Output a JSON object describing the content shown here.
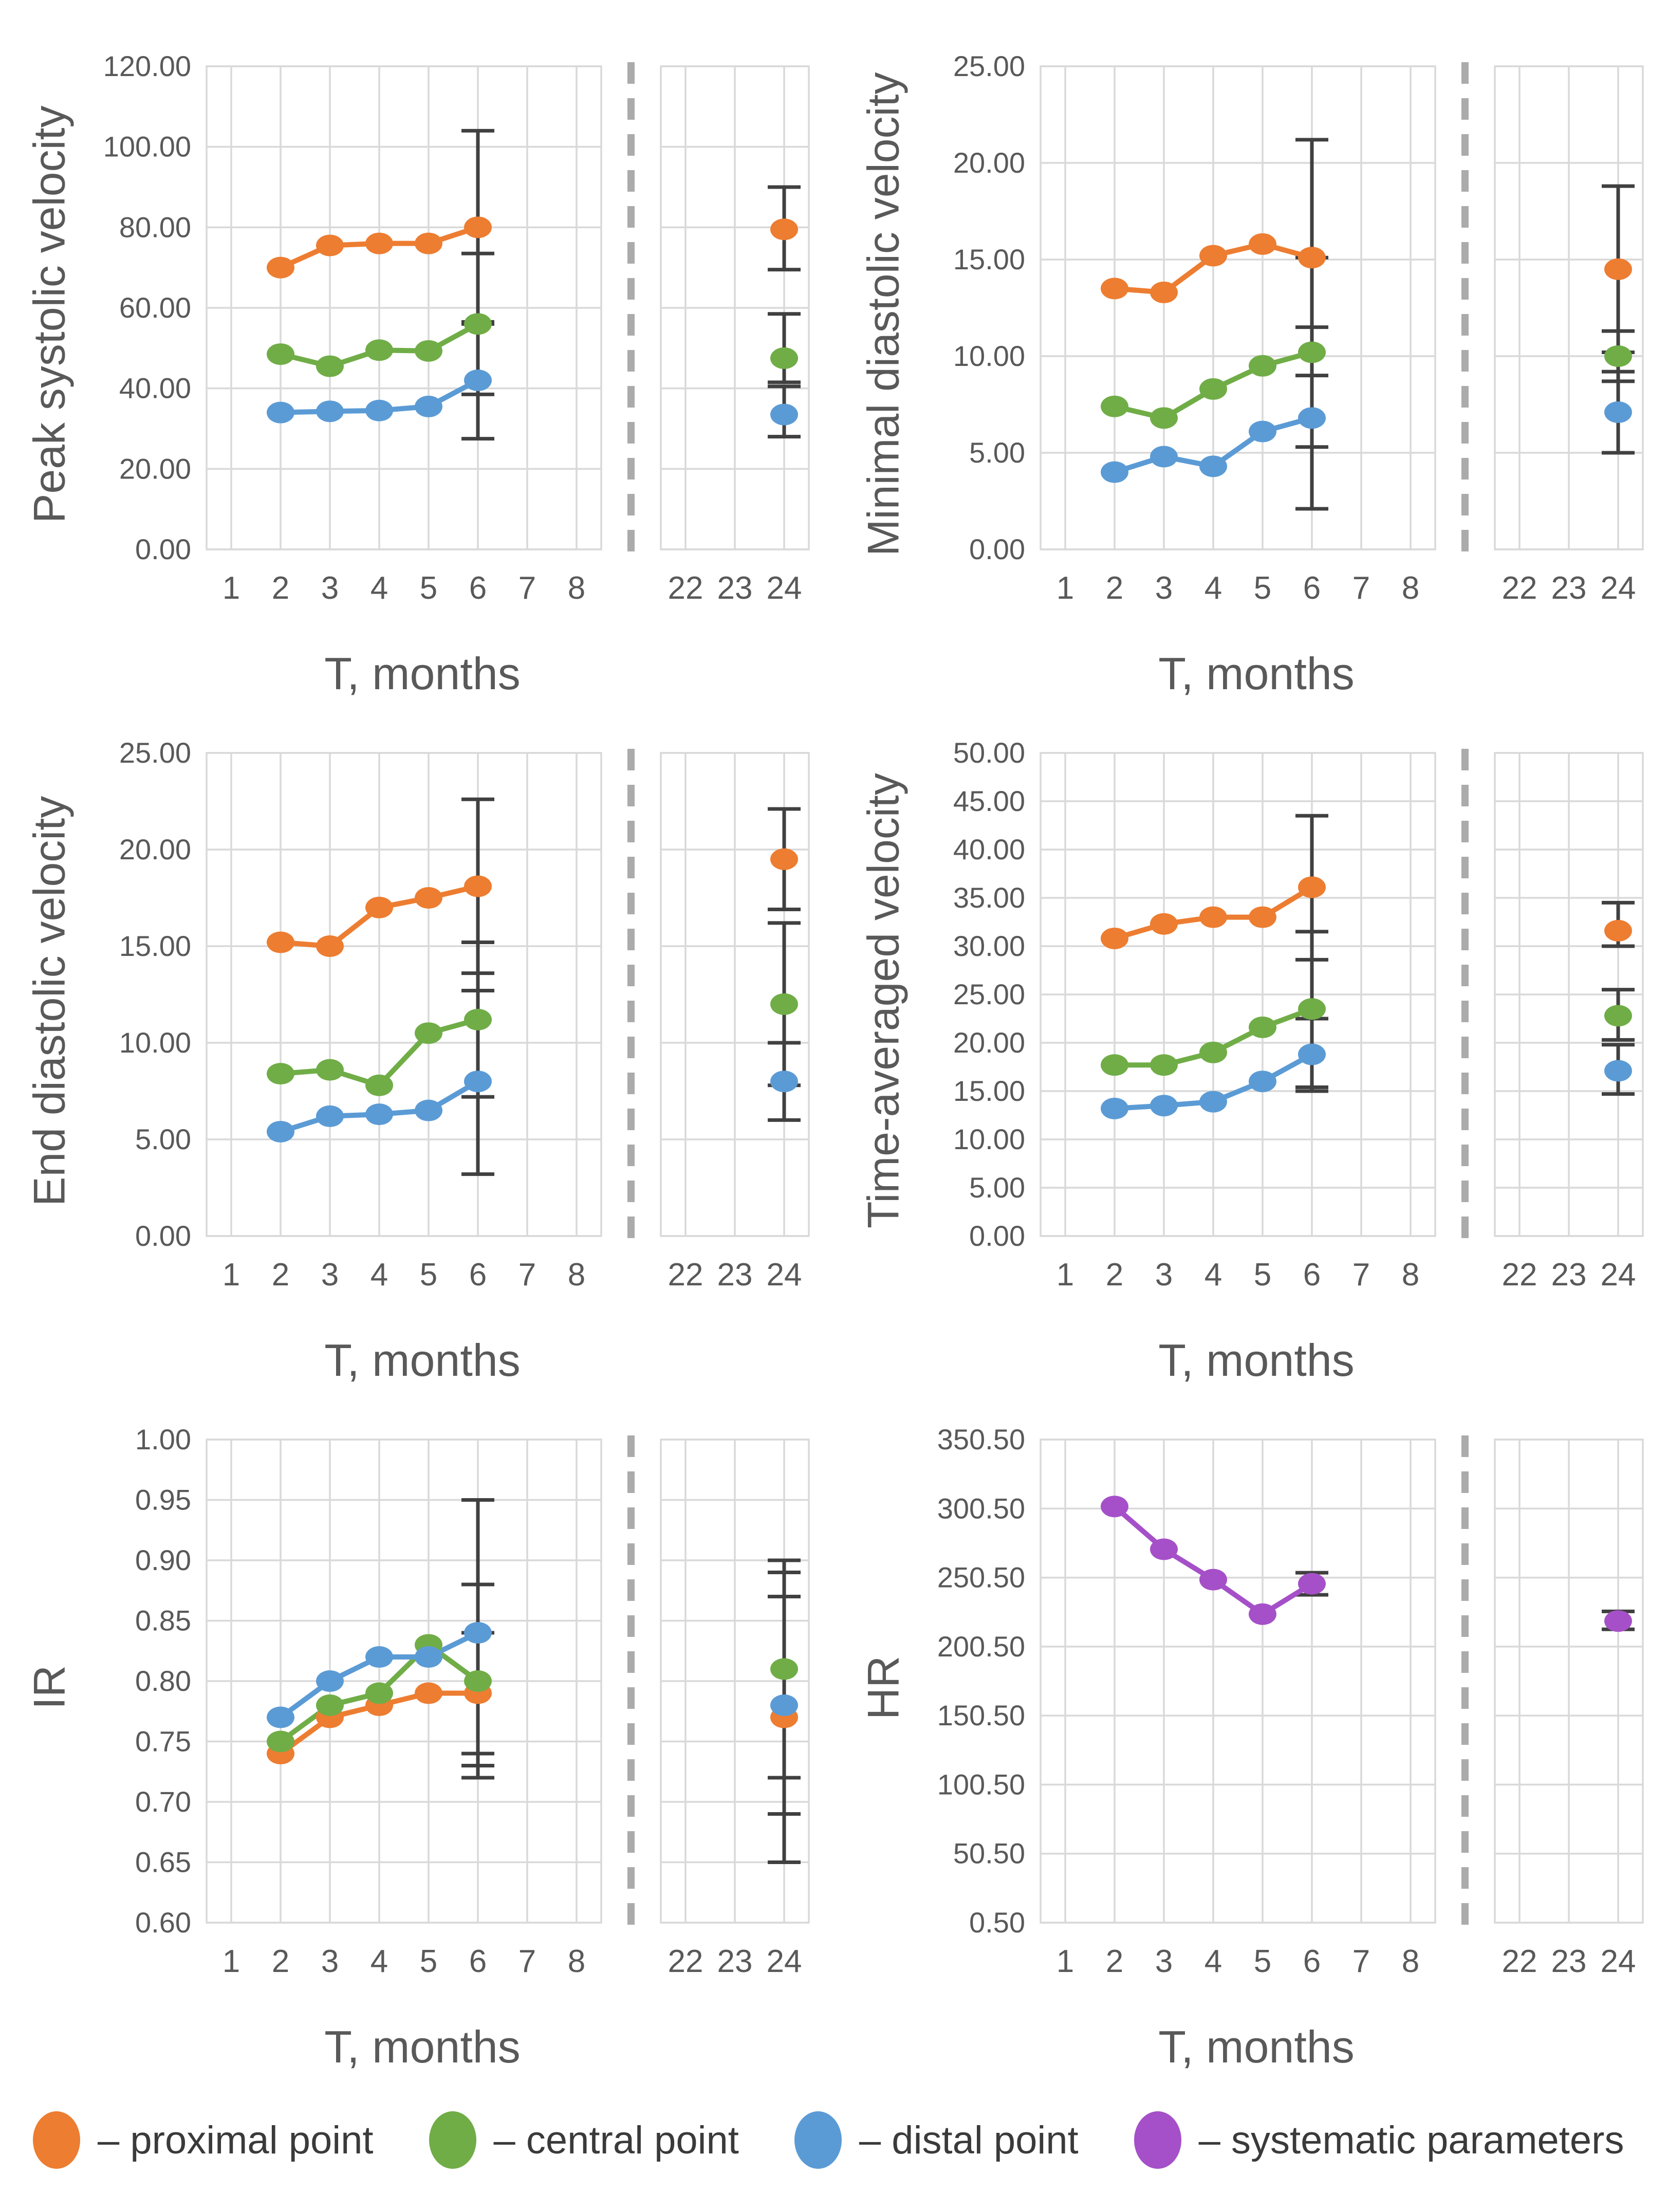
{
  "colors": {
    "proximal": "#ED7D31",
    "central": "#70AD47",
    "distal": "#5B9BD5",
    "systematic": "#A550C8",
    "error_bar": "#404040",
    "grid": "#D9D9D9",
    "axis_text": "#595959",
    "break_line": "#ABABAB"
  },
  "x_axis": {
    "main_ticks": [
      "1",
      "2",
      "3",
      "4",
      "5",
      "6",
      "7",
      "8"
    ],
    "break_ticks": [
      "22",
      "23",
      "24"
    ],
    "axis_break": true
  },
  "legend": [
    {
      "key": "proximal",
      "label": "– proximal point"
    },
    {
      "key": "central",
      "label": "– central point"
    },
    {
      "key": "distal",
      "label": "– distal point"
    },
    {
      "key": "systematic",
      "label": "– systematic parameters"
    }
  ],
  "chart_data": [
    {
      "type": "line",
      "ylabel": "Peak systolic velocity",
      "xlabel": "T, months",
      "ylim": [
        0,
        120
      ],
      "ytick_vals": [
        0,
        20,
        40,
        60,
        80,
        100,
        120
      ],
      "ytick_labels": [
        "0.00",
        "20.00",
        "40.00",
        "60.00",
        "80.00",
        "100.00",
        "120.00"
      ],
      "series": [
        {
          "name": "proximal point",
          "colorKey": "proximal",
          "x": [
            2,
            3,
            4,
            5,
            6
          ],
          "y": [
            70,
            75.5,
            76,
            76,
            80
          ],
          "err": {
            "6": [
              56,
              104
            ]
          },
          "p24": {
            "y": 79.5,
            "err": [
              69.5,
              90
            ]
          }
        },
        {
          "name": "central point",
          "colorKey": "central",
          "x": [
            2,
            3,
            4,
            5,
            6
          ],
          "y": [
            48.5,
            45.5,
            49.5,
            49.3,
            56
          ],
          "err": {
            "6": [
              38.5,
              73.5
            ]
          },
          "p24": {
            "y": 47.5,
            "err": [
              41.5,
              58.5
            ]
          }
        },
        {
          "name": "distal point",
          "colorKey": "distal",
          "x": [
            2,
            3,
            4,
            5,
            6
          ],
          "y": [
            34,
            34.3,
            34.5,
            35.5,
            42
          ],
          "err": {
            "6": [
              27.5,
              56.5
            ]
          },
          "p24": {
            "y": 33.5,
            "err": [
              28,
              40.5
            ]
          }
        }
      ]
    },
    {
      "type": "line",
      "ylabel": "Minimal diastolic velocity",
      "xlabel": "T, months",
      "ylim": [
        0,
        25
      ],
      "ytick_vals": [
        0,
        5,
        10,
        15,
        20,
        25
      ],
      "ytick_labels": [
        "0.00",
        "5.00",
        "10.00",
        "15.00",
        "20.00",
        "25.00"
      ],
      "series": [
        {
          "name": "proximal point",
          "colorKey": "proximal",
          "x": [
            2,
            3,
            4,
            5,
            6
          ],
          "y": [
            13.5,
            13.3,
            15.2,
            15.8,
            15.1
          ],
          "err": {
            "6": [
              9.0,
              21.2
            ]
          },
          "p24": {
            "y": 14.5,
            "err": [
              10.2,
              18.8
            ]
          }
        },
        {
          "name": "central point",
          "colorKey": "central",
          "x": [
            2,
            3,
            4,
            5,
            6
          ],
          "y": [
            7.4,
            6.8,
            8.3,
            9.5,
            10.2
          ],
          "err": {
            "6": [
              5.3,
              15.1
            ]
          },
          "p24": {
            "y": 10.0,
            "err": [
              8.7,
              11.3
            ]
          }
        },
        {
          "name": "distal point",
          "colorKey": "distal",
          "x": [
            2,
            3,
            4,
            5,
            6
          ],
          "y": [
            4.0,
            4.8,
            4.3,
            6.1,
            6.8
          ],
          "err": {
            "6": [
              2.1,
              11.5
            ]
          },
          "p24": {
            "y": 7.1,
            "err": [
              5.0,
              9.2
            ]
          }
        }
      ]
    },
    {
      "type": "line",
      "ylabel": "End diastolic velocity",
      "xlabel": "T, months",
      "ylim": [
        0,
        25
      ],
      "ytick_vals": [
        0,
        5,
        10,
        15,
        20,
        25
      ],
      "ytick_labels": [
        "0.00",
        "5.00",
        "10.00",
        "15.00",
        "20.00",
        "25.00"
      ],
      "series": [
        {
          "name": "proximal point",
          "colorKey": "proximal",
          "x": [
            2,
            3,
            4,
            5,
            6
          ],
          "y": [
            15.2,
            15.0,
            17.0,
            17.5,
            18.1
          ],
          "err": {
            "6": [
              13.6,
              22.6
            ]
          },
          "p24": {
            "y": 19.5,
            "err": [
              16.9,
              22.1
            ]
          }
        },
        {
          "name": "central point",
          "colorKey": "central",
          "x": [
            2,
            3,
            4,
            5,
            6
          ],
          "y": [
            8.4,
            8.6,
            7.8,
            10.5,
            11.2
          ],
          "err": {
            "6": [
              7.2,
              15.2
            ]
          },
          "p24": {
            "y": 12.0,
            "err": [
              7.8,
              16.2
            ]
          }
        },
        {
          "name": "distal point",
          "colorKey": "distal",
          "x": [
            2,
            3,
            4,
            5,
            6
          ],
          "y": [
            5.4,
            6.2,
            6.3,
            6.5,
            8.0
          ],
          "err": {
            "6": [
              3.2,
              12.7
            ]
          },
          "p24": {
            "y": 8.0,
            "err": [
              6.0,
              10.0
            ]
          }
        }
      ]
    },
    {
      "type": "line",
      "ylabel": "Time-averaged velocity",
      "xlabel": "T, months",
      "ylim": [
        0,
        50
      ],
      "ytick_vals": [
        0,
        5,
        10,
        15,
        20,
        25,
        30,
        35,
        40,
        45,
        50
      ],
      "ytick_labels": [
        "0.00",
        "5.00",
        "10.00",
        "15.00",
        "20.00",
        "25.00",
        "30.00",
        "35.00",
        "40.00",
        "45.00",
        "50.00"
      ],
      "series": [
        {
          "name": "proximal point",
          "colorKey": "proximal",
          "x": [
            2,
            3,
            4,
            5,
            6
          ],
          "y": [
            30.8,
            32.3,
            33.0,
            33.0,
            36.1
          ],
          "err": {
            "6": [
              28.6,
              43.5
            ]
          },
          "p24": {
            "y": 31.6,
            "err": [
              30.0,
              34.5
            ]
          }
        },
        {
          "name": "central point",
          "colorKey": "central",
          "x": [
            2,
            3,
            4,
            5,
            6
          ],
          "y": [
            17.7,
            17.7,
            19.0,
            21.6,
            23.5
          ],
          "err": {
            "6": [
              15.4,
              31.5
            ]
          },
          "p24": {
            "y": 22.8,
            "err": [
              20.3,
              25.5
            ]
          }
        },
        {
          "name": "distal point",
          "colorKey": "distal",
          "x": [
            2,
            3,
            4,
            5,
            6
          ],
          "y": [
            13.2,
            13.5,
            13.9,
            16.0,
            18.8
          ],
          "err": {
            "6": [
              15.0,
              22.5
            ]
          },
          "p24": {
            "y": 17.1,
            "err": [
              14.7,
              19.8
            ]
          }
        }
      ]
    },
    {
      "type": "line",
      "ylabel": "IR",
      "xlabel": "T, months",
      "ylim": [
        0.6,
        1.0
      ],
      "ytick_vals": [
        0.6,
        0.65,
        0.7,
        0.75,
        0.8,
        0.85,
        0.9,
        0.95,
        1.0
      ],
      "ytick_labels": [
        "0.60",
        "0.65",
        "0.70",
        "0.75",
        "0.80",
        "0.85",
        "0.90",
        "0.95",
        "1.00"
      ],
      "series": [
        {
          "name": "proximal point",
          "colorKey": "proximal",
          "x": [
            2,
            3,
            4,
            5,
            6
          ],
          "y": [
            0.74,
            0.77,
            0.78,
            0.79,
            0.79
          ],
          "err": {
            "6": [
              0.74,
              0.84
            ]
          },
          "p24": {
            "y": 0.77,
            "err": [
              0.65,
              0.89
            ]
          }
        },
        {
          "name": "central point",
          "colorKey": "central",
          "x": [
            2,
            3,
            4,
            5,
            6
          ],
          "y": [
            0.75,
            0.78,
            0.79,
            0.83,
            0.8
          ],
          "err": {
            "6": [
              0.72,
              0.88
            ]
          },
          "p24": {
            "y": 0.81,
            "err": [
              0.72,
              0.9
            ]
          }
        },
        {
          "name": "distal point",
          "colorKey": "distal",
          "x": [
            2,
            3,
            4,
            5,
            6
          ],
          "y": [
            0.77,
            0.8,
            0.82,
            0.82,
            0.84
          ],
          "err": {
            "6": [
              0.73,
              0.95
            ]
          },
          "p24": {
            "y": 0.78,
            "err": [
              0.69,
              0.87
            ]
          }
        }
      ]
    },
    {
      "type": "line",
      "ylabel": "HR",
      "xlabel": "T, months",
      "ylim": [
        0.5,
        350.5
      ],
      "ytick_vals": [
        0.5,
        50.5,
        100.5,
        150.5,
        200.5,
        250.5,
        300.5,
        350.5
      ],
      "ytick_labels": [
        "0.50",
        "50.50",
        "100.50",
        "150.50",
        "200.50",
        "250.50",
        "300.50",
        "350.50"
      ],
      "series": [
        {
          "name": "systematic parameters",
          "colorKey": "systematic",
          "x": [
            2,
            3,
            4,
            5,
            6
          ],
          "y": [
            302,
            271,
            249,
            224,
            246
          ],
          "err": {
            "6": [
              238,
              254
            ]
          },
          "p24": {
            "y": 219,
            "err": [
              213,
              226
            ]
          }
        }
      ]
    }
  ]
}
